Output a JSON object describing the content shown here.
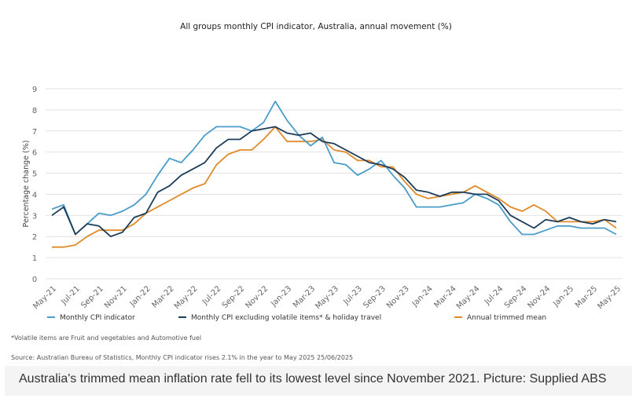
{
  "chart_data": {
    "type": "line",
    "title": "All groups monthly CPI indicator, Australia, annual movement (%)",
    "xlabel": "",
    "ylabel": "Percentage change (%)",
    "ylim": [
      0,
      9
    ],
    "yticks": [
      "0",
      "1",
      "2",
      "3",
      "4",
      "5",
      "6",
      "7",
      "8",
      "9"
    ],
    "grid": true,
    "legend_position": "bottom",
    "x": [
      "May-21",
      "Jun-21",
      "Jul-21",
      "Aug-21",
      "Sep-21",
      "Oct-21",
      "Nov-21",
      "Dec-21",
      "Jan-22",
      "Feb-22",
      "Mar-22",
      "Apr-22",
      "May-22",
      "Jun-22",
      "Jul-22",
      "Aug-22",
      "Sep-22",
      "Oct-22",
      "Nov-22",
      "Dec-22",
      "Jan-23",
      "Feb-23",
      "Mar-23",
      "Apr-23",
      "May-23",
      "Jun-23",
      "Jul-23",
      "Aug-23",
      "Sep-23",
      "Oct-23",
      "Nov-23",
      "Dec-23",
      "Jan-24",
      "Feb-24",
      "Mar-24",
      "Apr-24",
      "May-24",
      "Jun-24",
      "Jul-24",
      "Aug-24",
      "Sep-24",
      "Oct-24",
      "Nov-24",
      "Dec-24",
      "Jan-25",
      "Feb-25",
      "Mar-25",
      "Apr-25",
      "May-25"
    ],
    "xtick_labels": [
      "May-21",
      "Jul-21",
      "Sep-21",
      "Nov-21",
      "Jan-22",
      "Mar-22",
      "May-22",
      "Jul-22",
      "Sep-22",
      "Nov-22",
      "Jan-23",
      "Mar-23",
      "May-23",
      "Jul-23",
      "Sep-23",
      "Nov-23",
      "Jan-24",
      "Mar-24",
      "May-24",
      "Jul-24",
      "Sep-24",
      "Nov-24",
      "Jan-25",
      "Mar-25",
      "May-25"
    ],
    "series": [
      {
        "name": "Monthly CPI indicator",
        "color": "#4a9cc9",
        "values": [
          3.3,
          3.5,
          2.1,
          2.6,
          3.1,
          3.0,
          3.2,
          3.5,
          4.0,
          4.9,
          5.7,
          5.5,
          6.1,
          6.8,
          7.2,
          7.2,
          7.2,
          7.0,
          7.4,
          8.4,
          7.5,
          6.8,
          6.3,
          6.7,
          5.5,
          5.4,
          4.9,
          5.2,
          5.6,
          4.9,
          4.3,
          3.4,
          3.4,
          3.4,
          3.5,
          3.6,
          4.0,
          3.8,
          3.5,
          2.7,
          2.1,
          2.1,
          2.3,
          2.5,
          2.5,
          2.4,
          2.4,
          2.4,
          2.1
        ]
      },
      {
        "name": "Monthly CPI excluding volatile items* & holiday travel",
        "color": "#1c3d5a",
        "values": [
          3.0,
          3.4,
          2.1,
          2.6,
          2.5,
          2.0,
          2.2,
          2.9,
          3.1,
          4.1,
          4.4,
          4.9,
          5.2,
          5.5,
          6.2,
          6.6,
          6.6,
          7.0,
          7.1,
          7.2,
          6.9,
          6.8,
          6.9,
          6.5,
          6.4,
          6.1,
          5.8,
          5.5,
          5.4,
          5.2,
          4.8,
          4.2,
          4.1,
          3.9,
          4.1,
          4.1,
          4.0,
          4.0,
          3.7,
          3.0,
          2.7,
          2.4,
          2.8,
          2.7,
          2.9,
          2.7,
          2.6,
          2.8,
          2.7
        ]
      },
      {
        "name": "Annual trimmed mean",
        "color": "#e08a2a",
        "values": [
          1.5,
          1.5,
          1.6,
          2.0,
          2.3,
          2.3,
          2.3,
          2.6,
          3.1,
          3.4,
          3.7,
          4.0,
          4.3,
          4.5,
          5.4,
          5.9,
          6.1,
          6.1,
          6.6,
          7.2,
          6.5,
          6.5,
          6.5,
          6.6,
          6.1,
          6.0,
          5.6,
          5.6,
          5.3,
          5.3,
          4.6,
          4.0,
          3.8,
          3.9,
          4.0,
          4.1,
          4.4,
          4.1,
          3.8,
          3.4,
          3.2,
          3.5,
          3.2,
          2.7,
          2.7,
          2.7,
          2.7,
          2.8,
          2.4
        ]
      }
    ]
  },
  "footnote": "*Volatile items are Fruit and vegetables and Automotive fuel",
  "source": "Source: Australian Bureau of Statistics, Monthly CPI indicator rises 2.1% in the year to May 2025 25/06/2025",
  "caption": "Australia's trimmed mean inflation rate fell to its lowest level since November 2021. Picture: Supplied ABS"
}
